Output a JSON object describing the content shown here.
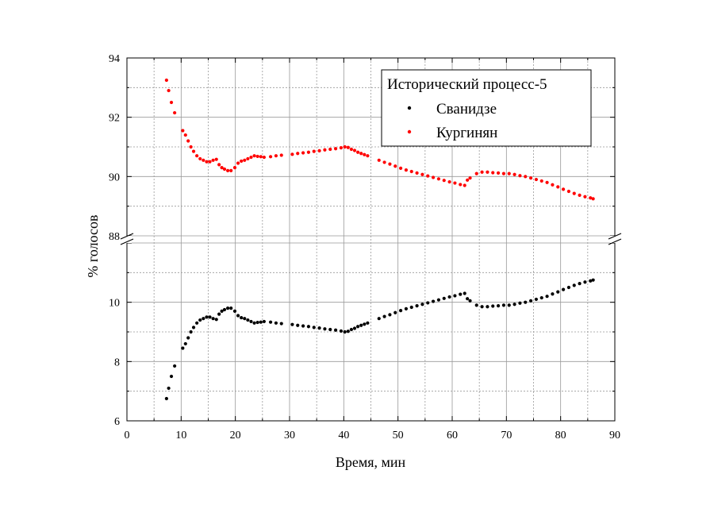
{
  "chart_data": {
    "type": "scatter",
    "title": "",
    "xlabel": "Время, мин",
    "ylabel": "% голосов",
    "xlim": [
      0,
      90
    ],
    "broken_y_axis": true,
    "y_upper_range": [
      88,
      94
    ],
    "y_lower_range": [
      6,
      12
    ],
    "x_ticks": [
      "0",
      "10",
      "20",
      "30",
      "40",
      "50",
      "60",
      "70",
      "80",
      "90"
    ],
    "y_upper_ticks": [
      "88",
      "90",
      "92",
      "94"
    ],
    "y_lower_ticks": [
      "6",
      "8",
      "10"
    ],
    "grid": true,
    "legend": {
      "title": "Исторический процесс-5",
      "position": "top-right"
    },
    "series": [
      {
        "name": "Сванидзе",
        "color": "#000000",
        "points": [
          [
            7.3,
            6.75
          ],
          [
            7.7,
            7.1
          ],
          [
            8.2,
            7.5
          ],
          [
            8.8,
            7.85
          ],
          [
            10.3,
            8.45
          ],
          [
            10.8,
            8.6
          ],
          [
            11.3,
            8.8
          ],
          [
            11.8,
            9.0
          ],
          [
            12.3,
            9.15
          ],
          [
            12.9,
            9.3
          ],
          [
            13.5,
            9.4
          ],
          [
            14.1,
            9.45
          ],
          [
            14.7,
            9.5
          ],
          [
            15.3,
            9.5
          ],
          [
            15.9,
            9.45
          ],
          [
            16.5,
            9.42
          ],
          [
            17.0,
            9.6
          ],
          [
            17.5,
            9.7
          ],
          [
            18.0,
            9.75
          ],
          [
            18.6,
            9.8
          ],
          [
            19.2,
            9.8
          ],
          [
            19.9,
            9.7
          ],
          [
            20.5,
            9.55
          ],
          [
            21.1,
            9.48
          ],
          [
            21.7,
            9.45
          ],
          [
            22.3,
            9.4
          ],
          [
            22.9,
            9.35
          ],
          [
            23.5,
            9.3
          ],
          [
            24.1,
            9.32
          ],
          [
            24.7,
            9.33
          ],
          [
            25.3,
            9.35
          ],
          [
            26.5,
            9.33
          ],
          [
            27.5,
            9.3
          ],
          [
            28.5,
            9.28
          ],
          [
            30.5,
            9.25
          ],
          [
            31.5,
            9.22
          ],
          [
            32.5,
            9.2
          ],
          [
            33.5,
            9.18
          ],
          [
            34.5,
            9.15
          ],
          [
            35.5,
            9.13
          ],
          [
            36.5,
            9.1
          ],
          [
            37.5,
            9.08
          ],
          [
            38.5,
            9.06
          ],
          [
            39.5,
            9.03
          ],
          [
            40.2,
            9.0
          ],
          [
            40.8,
            9.02
          ],
          [
            41.4,
            9.08
          ],
          [
            42.0,
            9.12
          ],
          [
            42.6,
            9.18
          ],
          [
            43.2,
            9.22
          ],
          [
            43.8,
            9.26
          ],
          [
            44.4,
            9.3
          ],
          [
            46.5,
            9.45
          ],
          [
            47.5,
            9.52
          ],
          [
            48.5,
            9.58
          ],
          [
            49.5,
            9.65
          ],
          [
            50.5,
            9.72
          ],
          [
            51.5,
            9.78
          ],
          [
            52.5,
            9.83
          ],
          [
            53.5,
            9.88
          ],
          [
            54.5,
            9.93
          ],
          [
            55.5,
            9.98
          ],
          [
            56.5,
            10.03
          ],
          [
            57.5,
            10.08
          ],
          [
            58.5,
            10.13
          ],
          [
            59.5,
            10.18
          ],
          [
            60.5,
            10.22
          ],
          [
            61.5,
            10.27
          ],
          [
            62.3,
            10.3
          ],
          [
            62.8,
            10.12
          ],
          [
            63.3,
            10.05
          ],
          [
            64.5,
            9.9
          ],
          [
            65.5,
            9.85
          ],
          [
            66.5,
            9.85
          ],
          [
            67.5,
            9.87
          ],
          [
            68.5,
            9.88
          ],
          [
            69.5,
            9.9
          ],
          [
            70.5,
            9.9
          ],
          [
            71.5,
            9.93
          ],
          [
            72.5,
            9.97
          ],
          [
            73.5,
            10.0
          ],
          [
            74.5,
            10.05
          ],
          [
            75.5,
            10.1
          ],
          [
            76.5,
            10.15
          ],
          [
            77.5,
            10.2
          ],
          [
            78.5,
            10.28
          ],
          [
            79.5,
            10.35
          ],
          [
            80.5,
            10.43
          ],
          [
            81.5,
            10.5
          ],
          [
            82.5,
            10.57
          ],
          [
            83.5,
            10.63
          ],
          [
            84.5,
            10.68
          ],
          [
            85.5,
            10.72
          ],
          [
            86.0,
            10.75
          ]
        ]
      },
      {
        "name": "Кургинян",
        "color": "#ff0000",
        "points": [
          [
            7.3,
            93.25
          ],
          [
            7.7,
            92.9
          ],
          [
            8.2,
            92.5
          ],
          [
            8.8,
            92.15
          ],
          [
            10.3,
            91.55
          ],
          [
            10.8,
            91.4
          ],
          [
            11.3,
            91.2
          ],
          [
            11.8,
            91.0
          ],
          [
            12.3,
            90.85
          ],
          [
            12.9,
            90.7
          ],
          [
            13.5,
            90.6
          ],
          [
            14.1,
            90.55
          ],
          [
            14.7,
            90.5
          ],
          [
            15.3,
            90.5
          ],
          [
            15.9,
            90.55
          ],
          [
            16.5,
            90.58
          ],
          [
            17.0,
            90.4
          ],
          [
            17.5,
            90.3
          ],
          [
            18.0,
            90.25
          ],
          [
            18.6,
            90.2
          ],
          [
            19.2,
            90.2
          ],
          [
            19.9,
            90.3
          ],
          [
            20.5,
            90.45
          ],
          [
            21.1,
            90.52
          ],
          [
            21.7,
            90.55
          ],
          [
            22.3,
            90.6
          ],
          [
            22.9,
            90.65
          ],
          [
            23.5,
            90.7
          ],
          [
            24.1,
            90.68
          ],
          [
            24.7,
            90.67
          ],
          [
            25.3,
            90.65
          ],
          [
            26.5,
            90.67
          ],
          [
            27.5,
            90.7
          ],
          [
            28.5,
            90.72
          ],
          [
            30.5,
            90.75
          ],
          [
            31.5,
            90.78
          ],
          [
            32.5,
            90.8
          ],
          [
            33.5,
            90.82
          ],
          [
            34.5,
            90.85
          ],
          [
            35.5,
            90.87
          ],
          [
            36.5,
            90.9
          ],
          [
            37.5,
            90.92
          ],
          [
            38.5,
            90.94
          ],
          [
            39.5,
            90.97
          ],
          [
            40.2,
            91.0
          ],
          [
            40.8,
            90.98
          ],
          [
            41.4,
            90.92
          ],
          [
            42.0,
            90.88
          ],
          [
            42.6,
            90.82
          ],
          [
            43.2,
            90.78
          ],
          [
            43.8,
            90.74
          ],
          [
            44.4,
            90.7
          ],
          [
            46.5,
            90.55
          ],
          [
            47.5,
            90.48
          ],
          [
            48.5,
            90.42
          ],
          [
            49.5,
            90.35
          ],
          [
            50.5,
            90.28
          ],
          [
            51.5,
            90.22
          ],
          [
            52.5,
            90.17
          ],
          [
            53.5,
            90.12
          ],
          [
            54.5,
            90.07
          ],
          [
            55.5,
            90.02
          ],
          [
            56.5,
            89.97
          ],
          [
            57.5,
            89.92
          ],
          [
            58.5,
            89.87
          ],
          [
            59.5,
            89.82
          ],
          [
            60.5,
            89.78
          ],
          [
            61.5,
            89.73
          ],
          [
            62.3,
            89.7
          ],
          [
            62.8,
            89.88
          ],
          [
            63.3,
            89.95
          ],
          [
            64.5,
            90.1
          ],
          [
            65.5,
            90.15
          ],
          [
            66.5,
            90.15
          ],
          [
            67.5,
            90.13
          ],
          [
            68.5,
            90.12
          ],
          [
            69.5,
            90.1
          ],
          [
            70.5,
            90.1
          ],
          [
            71.5,
            90.07
          ],
          [
            72.5,
            90.03
          ],
          [
            73.5,
            90.0
          ],
          [
            74.5,
            89.95
          ],
          [
            75.5,
            89.9
          ],
          [
            76.5,
            89.85
          ],
          [
            77.5,
            89.8
          ],
          [
            78.5,
            89.72
          ],
          [
            79.5,
            89.65
          ],
          [
            80.5,
            89.57
          ],
          [
            81.5,
            89.5
          ],
          [
            82.5,
            89.43
          ],
          [
            83.5,
            89.37
          ],
          [
            84.5,
            89.32
          ],
          [
            85.5,
            89.28
          ],
          [
            86.0,
            89.25
          ]
        ]
      }
    ]
  }
}
